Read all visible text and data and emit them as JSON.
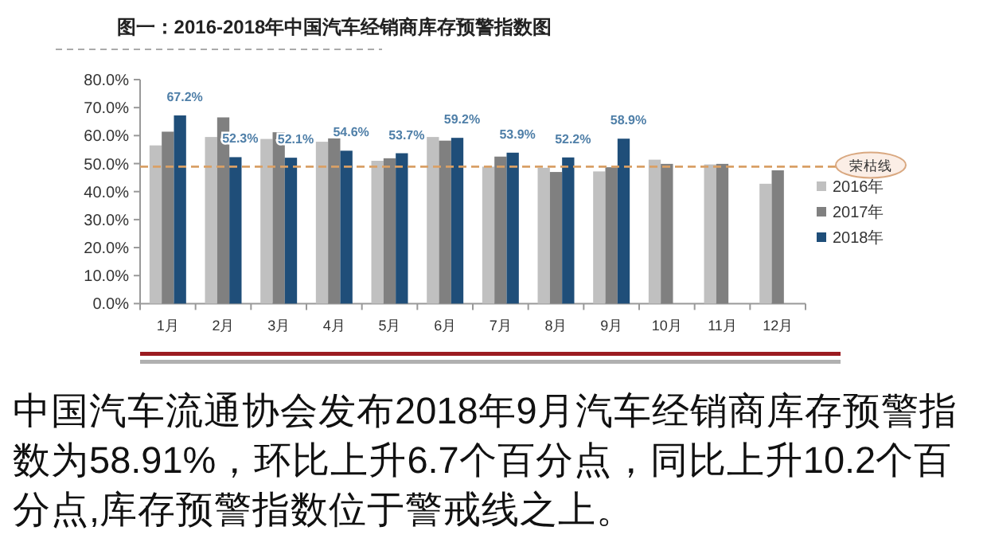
{
  "chart_data": {
    "type": "bar",
    "title": "图一：2016-2018年中国汽车经销商库存预警指数图",
    "categories": [
      "1月",
      "2月",
      "3月",
      "4月",
      "5月",
      "6月",
      "7月",
      "8月",
      "9月",
      "10月",
      "11月",
      "12月"
    ],
    "series": [
      {
        "name": "2016年",
        "color": "#c0c0c0",
        "values": [
          56.5,
          59.5,
          58.8,
          57.8,
          51.0,
          59.5,
          48.9,
          48.5,
          47.2,
          51.4,
          49.7,
          42.8
        ]
      },
      {
        "name": "2017年",
        "color": "#808080",
        "values": [
          61.4,
          66.5,
          61.2,
          59.0,
          51.9,
          58.2,
          52.5,
          47.0,
          48.7,
          49.9,
          49.9,
          47.6
        ]
      },
      {
        "name": "2018年",
        "color": "#1f4e79",
        "values": [
          67.2,
          52.3,
          52.1,
          54.6,
          53.7,
          59.2,
          53.9,
          52.2,
          58.9,
          null,
          null,
          null
        ],
        "value_labels": [
          "67.2%",
          "52.3%",
          "52.1%",
          "54.6%",
          "53.7%",
          "59.2%",
          "53.9%",
          "52.2%",
          "58.9%",
          null,
          null,
          null
        ]
      }
    ],
    "ylim": [
      0,
      80
    ],
    "yticks": [
      {
        "value": 0,
        "label": "0.0%"
      },
      {
        "value": 10,
        "label": "10.0%"
      },
      {
        "value": 20,
        "label": "20.0%"
      },
      {
        "value": 30,
        "label": "30.0%"
      },
      {
        "value": 40,
        "label": "40.0%"
      },
      {
        "value": 50,
        "label": "50.0%"
      },
      {
        "value": 60,
        "label": "60.0%"
      },
      {
        "value": 70,
        "label": "70.0%"
      },
      {
        "value": 80,
        "label": "80.0%"
      }
    ],
    "ref_lines": [
      {
        "axis": "y",
        "value": 48.9,
        "label": "荣枯线",
        "color": "#d9a066",
        "line_style": "dashed"
      }
    ],
    "legend": "right",
    "annotations": [
      "中国汽车流通协会发布2018年9月汽车经销商库存预警指数为58.91%，环比上升6.7个百分点，同比上升10.2个百分点,库存预警指数位于警戒线之上。"
    ]
  }
}
